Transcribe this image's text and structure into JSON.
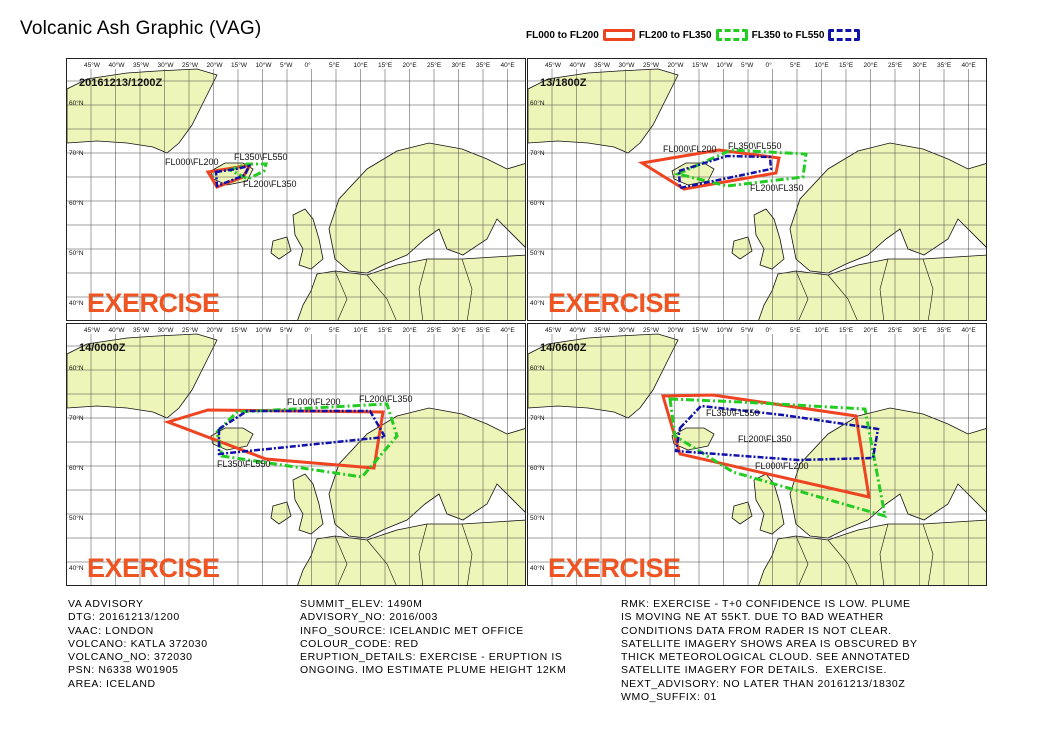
{
  "title": "Volcanic Ash Graphic (VAG)",
  "legend": [
    {
      "label": "FL000 to FL200",
      "color": "#ee4422",
      "style": "solid"
    },
    {
      "label": "FL200 to FL350",
      "color": "#22cc22",
      "style": "dashdot"
    },
    {
      "label": "FL350 to FL550",
      "color": "#1111aa",
      "style": "dashdot"
    }
  ],
  "lon_ticks": [
    "45°W",
    "40°W",
    "35°W",
    "30°W",
    "25°W",
    "20°W",
    "15°W",
    "10°W",
    "5°W",
    "0°",
    "5°E",
    "10°E",
    "15°E",
    "20°E",
    "25°E",
    "30°E",
    "35°E",
    "40°E"
  ],
  "lat_ticks": [
    "60°N",
    "70°N",
    "60°N",
    "50°N",
    "40°N"
  ],
  "panels": [
    {
      "time": "20161213/1200Z",
      "watermark": "EXERCISE",
      "labels": [
        "FL000\\FL200",
        "FL350\\FL550",
        "FL200\\FL350"
      ]
    },
    {
      "time": "13/1800Z",
      "watermark": "EXERCISE",
      "labels": [
        "FL000\\FL200",
        "FL350\\FL550",
        "FL200\\FL350"
      ]
    },
    {
      "time": "14/0000Z",
      "watermark": "EXERCISE",
      "labels": [
        "FL000\\FL200",
        "FL200\\FL350",
        "FL350\\FL550"
      ]
    },
    {
      "time": "14/0600Z",
      "watermark": "EXERCISE",
      "labels": [
        "FL350\\FL550",
        "FL200\\FL350",
        "FL000\\FL200"
      ]
    }
  ],
  "advisory": {
    "col1": [
      "VA ADVISORY",
      "DTG: 20161213/1200",
      "VAAC: LONDON",
      "VOLCANO: KATLA 372030",
      "VOLCANO_NO: 372030",
      "PSN: N6338 W01905",
      "AREA: ICELAND"
    ],
    "col2": [
      "SUMMIT_ELEV: 1490M",
      "ADVISORY_NO: 2016/003",
      "INFO_SOURCE: ICELANDIC MET OFFICE",
      "COLOUR_CODE: RED",
      "ERUPTION_DETAILS: EXERCISE - ERUPTION IS",
      "ONGOING. IMO ESTIMATE PLUME HEIGHT 12KM"
    ],
    "col3": [
      "RMK: EXERCISE - T+0 CONFIDENCE IS LOW. PLUME",
      "IS MOVING NE AT 55KT. DUE TO BAD WEATHER",
      "CONDITIONS DATA FROM RADER IS NOT CLEAR.",
      "SATELLITE IMAGERY SHOWS AREA IS OBSCURED BY",
      "THICK METEOROLOGICAL CLOUD. SEE ANNOTATED",
      "SATELLITE IMAGERY FOR DETAILS.  EXERCISE.",
      "NEXT_ADVISORY: NO LATER THAN 20161213/1830Z",
      "WMO_SUFFIX: 01"
    ]
  }
}
